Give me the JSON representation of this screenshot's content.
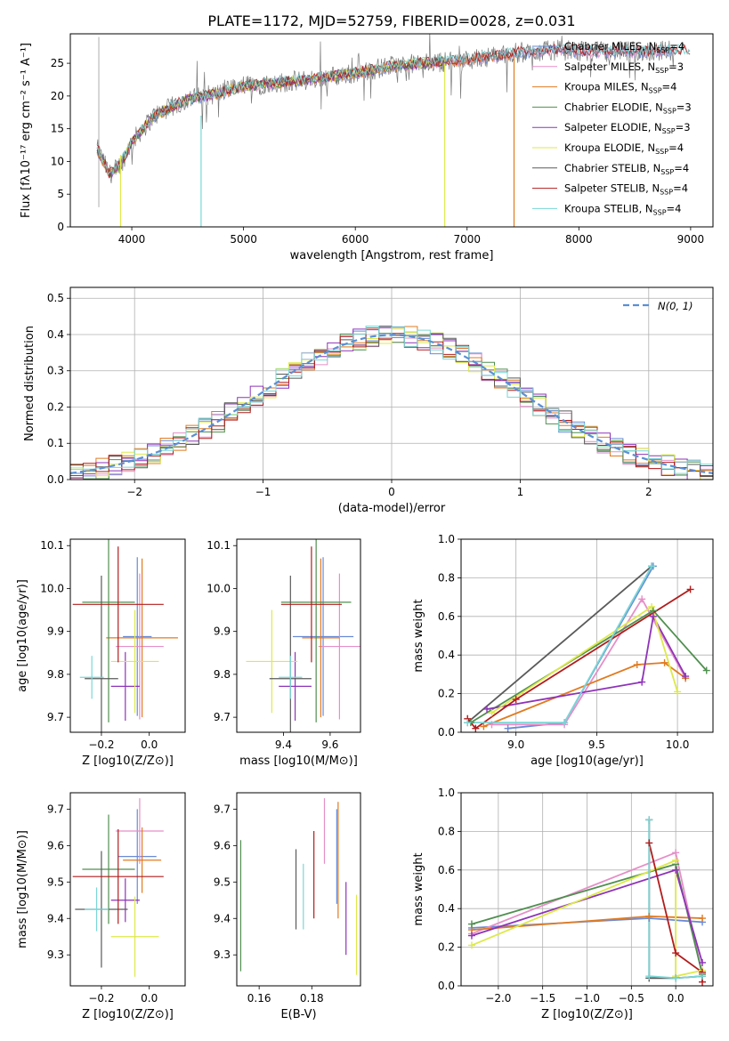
{
  "title": "PLATE=1172, MJD=52759, FIBERID=0028, z=0.031",
  "colors": {
    "Chabrier MILES": "#6a8ad6",
    "Salpeter MILES": "#e58fc8",
    "Kroupa MILES": "#e07b21",
    "Chabrier ELODIE": "#4f8f4f",
    "Salpeter ELODIE": "#8e33b8",
    "Kroupa ELODIE": "#dde94a",
    "Chabrier STELIB": "#5a5a5a",
    "Salpeter STELIB": "#b21c1c",
    "Kroupa STELIB": "#7ad6d6",
    "normal": "#5a8fd6"
  },
  "chart_data": [
    {
      "id": "spectrum",
      "type": "line",
      "title": "PLATE=1172, MJD=52759, FIBERID=0028, z=0.031",
      "xlabel": "wavelength [Angstrom, rest frame]",
      "ylabel": "Flux [fλ10⁻¹⁷ erg cm⁻² s⁻¹ A⁻¹]",
      "xlim": [
        3450,
        9200
      ],
      "ylim": [
        0,
        29.5
      ],
      "xticks": [
        4000,
        5000,
        6000,
        7000,
        8000,
        9000
      ],
      "yticks": [
        0,
        5,
        10,
        15,
        20,
        25
      ],
      "grid": false,
      "legend_position": "right",
      "continuum_x": [
        3690,
        3800,
        3900,
        4000,
        4200,
        4500,
        4800,
        5000,
        5300,
        5600,
        6000,
        6300,
        6600,
        7000,
        7400,
        7800,
        8200,
        8600,
        8850
      ],
      "continuum_y": [
        12.0,
        8.0,
        9.5,
        13.0,
        17.0,
        19.5,
        20.5,
        21.5,
        22.0,
        22.5,
        23.5,
        24.5,
        25.0,
        25.5,
        26.5,
        27.0,
        26.8,
        26.8,
        27.0
      ],
      "series": [
        {
          "name": "Chabrier MILES, N_SSP=4",
          "xmax": 8860
        },
        {
          "name": "Salpeter MILES, N_SSP=3",
          "xmax": 8860
        },
        {
          "name": "Kroupa MILES, N_SSP=4",
          "xmax": 7420
        },
        {
          "name": "Chabrier ELODIE, N_SSP=3",
          "xmax": 6800
        },
        {
          "name": "Salpeter ELODIE, N_SSP=3",
          "xmax": 6800
        },
        {
          "name": "Kroupa ELODIE, N_SSP=4",
          "xmax": 6800
        },
        {
          "name": "Chabrier STELIB, N_SSP=4",
          "xmax": 9000
        },
        {
          "name": "Salpeter STELIB, N_SSP=4",
          "xmax": 9000
        },
        {
          "name": "Kroupa STELIB, N_SSP=4",
          "xmax": 9000
        }
      ],
      "drops": [
        {
          "x": 3900,
          "top": 11,
          "series": "Kroupa ELODIE"
        },
        {
          "x": 4620,
          "top": 17,
          "series": "Kroupa STELIB"
        },
        {
          "x": 6800,
          "top": 25,
          "series": "Kroupa ELODIE"
        },
        {
          "x": 7420,
          "top": 26,
          "series": "Kroupa MILES"
        }
      ]
    },
    {
      "id": "residuals",
      "type": "line",
      "xlabel": "(data-model)/error",
      "ylabel": "Normed distribution",
      "xlim": [
        -2.5,
        2.5
      ],
      "ylim": [
        0,
        0.53
      ],
      "xticks": [
        -2,
        -1,
        0,
        1,
        2
      ],
      "yticks": [
        0.0,
        0.1,
        0.2,
        0.3,
        0.4,
        0.5
      ],
      "grid": true,
      "legend": "N(0, 1)",
      "legend_position": "top-right",
      "bin_width": 0.1,
      "histogram_series": [
        "Chabrier MILES",
        "Salpeter MILES",
        "Kroupa MILES",
        "Chabrier ELODIE",
        "Salpeter ELODIE",
        "Kroupa ELODIE",
        "Chabrier STELIB",
        "Salpeter STELIB",
        "Kroupa STELIB"
      ]
    },
    {
      "id": "age_vs_Z",
      "type": "scatter",
      "xlabel": "Z [log10(Z/Z⊙)]",
      "ylabel": "age  [log10(age/yr)]",
      "xlim": [
        -0.33,
        0.15
      ],
      "ylim": [
        9.665,
        10.115
      ],
      "xticks": [
        -0.2,
        0.0
      ],
      "yticks": [
        9.7,
        9.8,
        9.9,
        10.0,
        10.1
      ],
      "points": [
        {
          "s": "Chabrier MILES",
          "x": -0.05,
          "xerr": 0.06,
          "y": 9.888,
          "yerr": 0.185
        },
        {
          "s": "Salpeter MILES",
          "x": -0.04,
          "xerr": 0.1,
          "y": 9.865,
          "yerr": 0.17
        },
        {
          "s": "Kroupa MILES",
          "x": -0.03,
          "xerr": 0.15,
          "y": 9.885,
          "yerr": 0.185
        },
        {
          "s": "Chabrier ELODIE",
          "x": -0.17,
          "xerr": 0.11,
          "y": 9.968,
          "yerr": 0.28
        },
        {
          "s": "Salpeter ELODIE",
          "x": -0.1,
          "xerr": 0.06,
          "y": 9.772,
          "yerr": 0.08
        },
        {
          "s": "Kroupa ELODIE",
          "x": -0.06,
          "xerr": 0.1,
          "y": 9.83,
          "yerr": 0.12
        },
        {
          "s": "Chabrier STELIB",
          "x": -0.2,
          "xerr": 0.07,
          "y": 9.79,
          "yerr": 0.24
        },
        {
          "s": "Salpeter STELIB",
          "x": -0.13,
          "xerr": 0.19,
          "y": 9.963,
          "yerr": 0.135
        },
        {
          "s": "Kroupa STELIB",
          "x": -0.24,
          "xerr": 0.05,
          "y": 9.793,
          "yerr": 0.05
        }
      ]
    },
    {
      "id": "age_vs_mass",
      "type": "scatter",
      "xlabel": "mass [log10(M/M⊙)]",
      "ylabel": "",
      "xlim": [
        9.2,
        9.73
      ],
      "ylim": [
        9.665,
        10.115
      ],
      "xticks": [
        9.4,
        9.6
      ],
      "yticks": [
        9.7,
        9.8,
        9.9,
        10.0,
        10.1
      ],
      "points": [
        {
          "s": "Chabrier MILES",
          "x": 9.57,
          "xerr": 0.13,
          "y": 9.888,
          "yerr": 0.185
        },
        {
          "s": "Salpeter MILES",
          "x": 9.64,
          "xerr": 0.09,
          "y": 9.865,
          "yerr": 0.17
        },
        {
          "s": "Kroupa MILES",
          "x": 9.56,
          "xerr": 0.08,
          "y": 9.885,
          "yerr": 0.185
        },
        {
          "s": "Chabrier ELODIE",
          "x": 9.54,
          "xerr": 0.15,
          "y": 9.968,
          "yerr": 0.28
        },
        {
          "s": "Salpeter ELODIE",
          "x": 9.45,
          "xerr": 0.07,
          "y": 9.772,
          "yerr": 0.08
        },
        {
          "s": "Kroupa ELODIE",
          "x": 9.35,
          "xerr": 0.11,
          "y": 9.83,
          "yerr": 0.12
        },
        {
          "s": "Chabrier STELIB",
          "x": 9.43,
          "xerr": 0.09,
          "y": 9.79,
          "yerr": 0.24
        },
        {
          "s": "Salpeter STELIB",
          "x": 9.52,
          "xerr": 0.13,
          "y": 9.963,
          "yerr": 0.135
        },
        {
          "s": "Kroupa STELIB",
          "x": 9.43,
          "xerr": 0.05,
          "y": 9.793,
          "yerr": 0.05
        }
      ]
    },
    {
      "id": "weight_vs_age",
      "type": "line",
      "xlabel": "age  [log10(age/yr)]",
      "ylabel": "mass weight",
      "xlim": [
        8.66,
        10.22
      ],
      "ylim": [
        0,
        1.0
      ],
      "xticks": [
        9.0,
        9.5,
        10.0
      ],
      "yticks": [
        0.0,
        0.2,
        0.4,
        0.6,
        0.8,
        1.0
      ],
      "grid": true,
      "series": [
        {
          "s": "Chabrier MILES",
          "x": [
            8.95,
            9.3,
            9.85
          ],
          "y": [
            0.02,
            0.05,
            0.86
          ]
        },
        {
          "s": "Salpeter MILES",
          "x": [
            8.85,
            9.3,
            9.78,
            10.05
          ],
          "y": [
            0.04,
            0.04,
            0.69,
            0.28
          ]
        },
        {
          "s": "Kroupa MILES",
          "x": [
            8.8,
            9.75,
            9.92,
            10.05
          ],
          "y": [
            0.03,
            0.35,
            0.36,
            0.28
          ]
        },
        {
          "s": "Chabrier ELODIE",
          "x": [
            8.72,
            9.85,
            10.18
          ],
          "y": [
            0.05,
            0.63,
            0.32
          ]
        },
        {
          "s": "Salpeter ELODIE",
          "x": [
            8.82,
            9.78,
            9.85,
            10.05
          ],
          "y": [
            0.12,
            0.26,
            0.6,
            0.29
          ]
        },
        {
          "s": "Kroupa ELODIE",
          "x": [
            8.85,
            9.84,
            10.0
          ],
          "y": [
            0.1,
            0.65,
            0.21
          ]
        },
        {
          "s": "Chabrier STELIB",
          "x": [
            8.7,
            9.84
          ],
          "y": [
            0.05,
            0.86
          ]
        },
        {
          "s": "Salpeter STELIB",
          "x": [
            8.7,
            8.75,
            9.0,
            10.08
          ],
          "y": [
            0.07,
            0.02,
            0.17,
            0.74
          ]
        },
        {
          "s": "Kroupa STELIB",
          "x": [
            8.7,
            9.3,
            9.84
          ],
          "y": [
            0.05,
            0.05,
            0.86
          ]
        }
      ]
    },
    {
      "id": "mass_vs_Z",
      "type": "scatter",
      "xlabel": "Z [log10(Z/Z⊙)]",
      "ylabel": "mass [log10(M/M⊙)]",
      "xlim": [
        -0.33,
        0.15
      ],
      "ylim": [
        9.215,
        9.745
      ],
      "xticks": [
        -0.2,
        0.0
      ],
      "yticks": [
        9.3,
        9.4,
        9.5,
        9.6,
        9.7
      ],
      "points": [
        {
          "s": "Chabrier MILES",
          "x": -0.05,
          "xerr": 0.08,
          "y": 9.57,
          "yerr": 0.13
        },
        {
          "s": "Salpeter MILES",
          "x": -0.04,
          "xerr": 0.1,
          "y": 9.64,
          "yerr": 0.09
        },
        {
          "s": "Kroupa MILES",
          "x": -0.03,
          "xerr": 0.08,
          "y": 9.56,
          "yerr": 0.09
        },
        {
          "s": "Chabrier ELODIE",
          "x": -0.17,
          "xerr": 0.11,
          "y": 9.535,
          "yerr": 0.15
        },
        {
          "s": "Salpeter ELODIE",
          "x": -0.1,
          "xerr": 0.06,
          "y": 9.45,
          "yerr": 0.06
        },
        {
          "s": "Kroupa ELODIE",
          "x": -0.06,
          "xerr": 0.1,
          "y": 9.35,
          "yerr": 0.11
        },
        {
          "s": "Chabrier STELIB",
          "x": -0.2,
          "xerr": 0.11,
          "y": 9.425,
          "yerr": 0.16
        },
        {
          "s": "Salpeter STELIB",
          "x": -0.13,
          "xerr": 0.19,
          "y": 9.515,
          "yerr": 0.13
        },
        {
          "s": "Kroupa STELIB",
          "x": -0.22,
          "xerr": 0.05,
          "y": 9.425,
          "yerr": 0.06
        }
      ]
    },
    {
      "id": "mass_vs_ebv",
      "type": "scatter",
      "xlabel": "E(B-V)",
      "ylabel": "",
      "xlim": [
        0.1515,
        0.1985
      ],
      "ylim": [
        9.215,
        9.745
      ],
      "xticks": [
        0.16,
        0.18
      ],
      "yticks": [
        9.3,
        9.4,
        9.5,
        9.6,
        9.7
      ],
      "points": [
        {
          "s": "Chabrier MILES",
          "x": 0.1895,
          "y": 9.57,
          "yerr": 0.13
        },
        {
          "s": "Salpeter MILES",
          "x": 0.1848,
          "y": 9.64,
          "yerr": 0.09
        },
        {
          "s": "Kroupa MILES",
          "x": 0.19,
          "y": 9.56,
          "yerr": 0.16
        },
        {
          "s": "Chabrier ELODIE",
          "x": 0.153,
          "y": 9.435,
          "yerr": 0.18
        },
        {
          "s": "Salpeter ELODIE",
          "x": 0.193,
          "y": 9.4,
          "yerr": 0.1
        },
        {
          "s": "Kroupa ELODIE",
          "x": 0.197,
          "y": 9.355,
          "yerr": 0.11
        },
        {
          "s": "Chabrier STELIB",
          "x": 0.174,
          "y": 9.48,
          "yerr": 0.11
        },
        {
          "s": "Salpeter STELIB",
          "x": 0.1808,
          "y": 9.52,
          "yerr": 0.12
        },
        {
          "s": "Kroupa STELIB",
          "x": 0.1768,
          "y": 9.46,
          "yerr": 0.09
        }
      ]
    },
    {
      "id": "weight_vs_Z",
      "type": "line",
      "xlabel": "Z [log10(Z/Z⊙)]",
      "ylabel": "mass weight",
      "xlim": [
        -2.42,
        0.42
      ],
      "ylim": [
        0,
        1.0
      ],
      "xticks": [
        -2.0,
        -1.5,
        -1.0,
        -0.5,
        0.0
      ],
      "yticks": [
        0.0,
        0.2,
        0.4,
        0.6,
        0.8,
        1.0
      ],
      "grid": true,
      "series": [
        {
          "s": "Chabrier MILES",
          "x": [
            -2.3,
            -0.3,
            0.3
          ],
          "y": [
            0.3,
            0.35,
            0.33
          ]
        },
        {
          "s": "Salpeter MILES",
          "x": [
            -2.3,
            0.0,
            0.3
          ],
          "y": [
            0.27,
            0.69,
            0.06
          ]
        },
        {
          "s": "Kroupa MILES",
          "x": [
            -2.3,
            -0.3,
            0.3
          ],
          "y": [
            0.29,
            0.36,
            0.35
          ]
        },
        {
          "s": "Chabrier ELODIE",
          "x": [
            -2.3,
            0.0,
            0.3
          ],
          "y": [
            0.32,
            0.63,
            0.06
          ]
        },
        {
          "s": "Salpeter ELODIE",
          "x": [
            -2.3,
            0.0,
            0.3
          ],
          "y": [
            0.26,
            0.6,
            0.12
          ]
        },
        {
          "s": "Kroupa ELODIE",
          "x": [
            -2.3,
            0.0,
            0.0,
            0.3
          ],
          "y": [
            0.21,
            0.65,
            0.05,
            0.08
          ]
        },
        {
          "s": "Chabrier STELIB",
          "x": [
            -0.3,
            -0.3,
            0.0,
            0.3
          ],
          "y": [
            0.86,
            0.04,
            0.04,
            0.05
          ]
        },
        {
          "s": "Salpeter STELIB",
          "x": [
            -0.3,
            0.0,
            0.3,
            0.3
          ],
          "y": [
            0.74,
            0.17,
            0.07,
            0.02
          ]
        },
        {
          "s": "Kroupa STELIB",
          "x": [
            -0.3,
            -0.3,
            0.0,
            0.3
          ],
          "y": [
            0.86,
            0.05,
            0.04,
            0.05
          ]
        }
      ]
    }
  ]
}
